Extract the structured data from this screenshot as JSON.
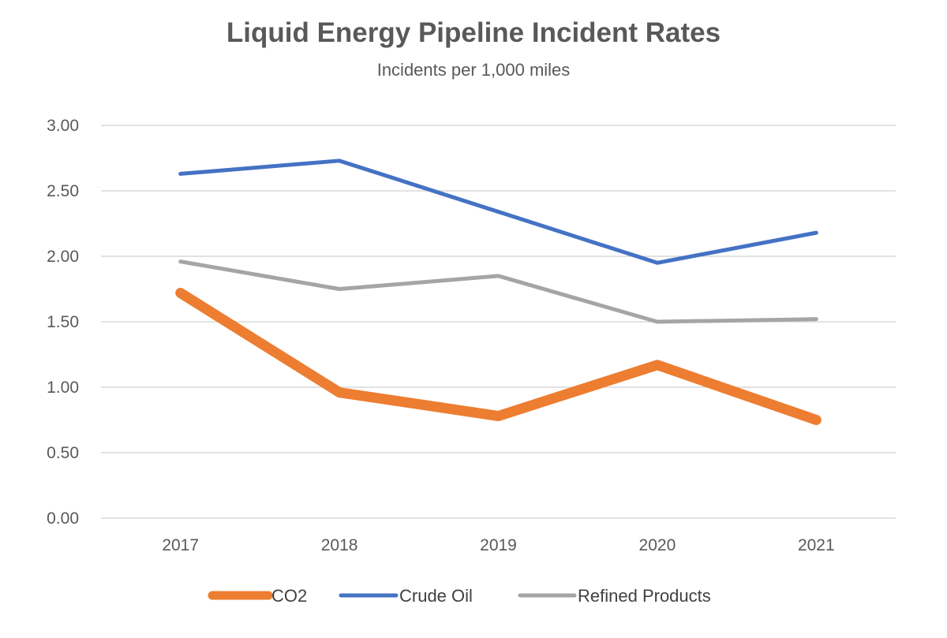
{
  "chart_data": {
    "type": "line",
    "title": "Liquid Energy Pipeline Incident Rates",
    "subtitle": "Incidents per 1,000 miles",
    "categories": [
      "2017",
      "2018",
      "2019",
      "2020",
      "2021"
    ],
    "y_ticks": [
      "0.00",
      "0.50",
      "1.00",
      "1.50",
      "2.00",
      "2.50",
      "3.00"
    ],
    "ylim": [
      0,
      3
    ],
    "grid": true,
    "legend_position": "bottom",
    "series": [
      {
        "name": "CO2",
        "values": [
          1.72,
          0.96,
          0.78,
          1.17,
          0.75
        ],
        "color": "#ED7D31",
        "weight": "thick"
      },
      {
        "name": "Crude Oil",
        "values": [
          2.63,
          2.73,
          2.34,
          1.95,
          2.18
        ],
        "color": "#4472C4",
        "weight": "normal"
      },
      {
        "name": "Refined Products",
        "values": [
          1.96,
          1.75,
          1.85,
          1.5,
          1.52
        ],
        "color": "#A5A5A5",
        "weight": "normal"
      }
    ]
  }
}
